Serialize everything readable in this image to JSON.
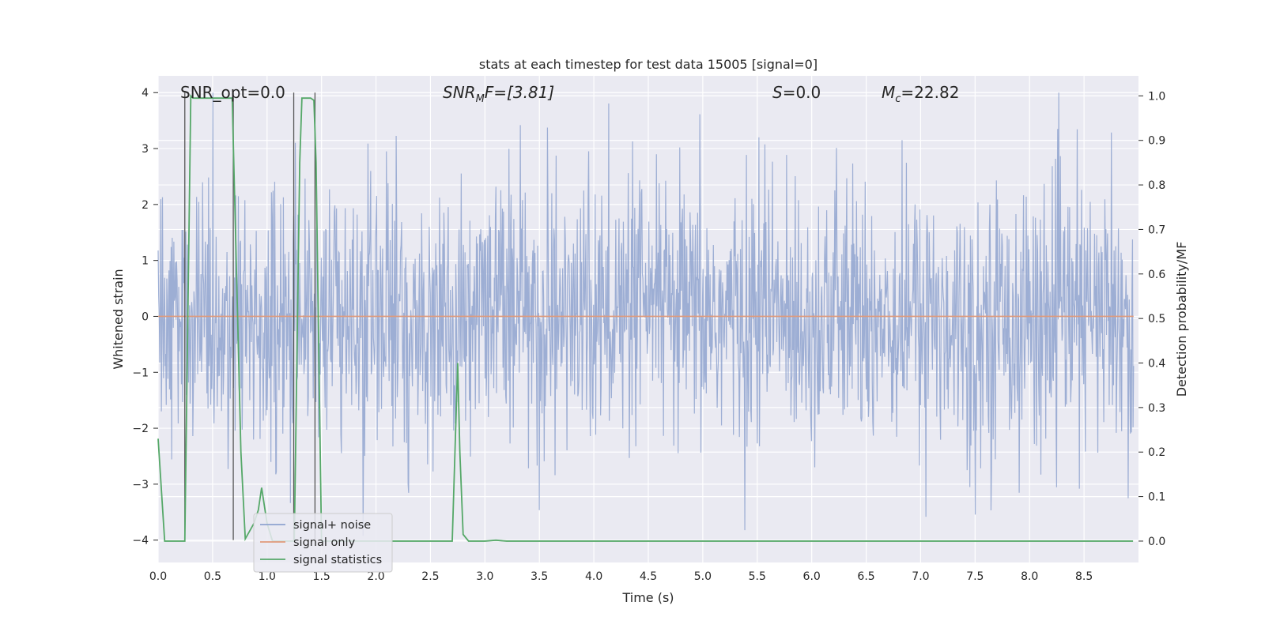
{
  "chart_data": {
    "type": "line",
    "title": "stats at each timestep for test data 15005 [signal=0]",
    "xlabel": "Time (s)",
    "ylabel": "Whitened strain",
    "y2label": "Detection probability/MF",
    "xlim": [
      0,
      9
    ],
    "ylim": [
      -4.4,
      4.3
    ],
    "y2lim": [
      -0.048,
      1.045
    ],
    "xticks": [
      "0.0",
      "0.5",
      "1.0",
      "1.5",
      "2.0",
      "2.5",
      "3.0",
      "3.5",
      "4.0",
      "4.5",
      "5.0",
      "5.5",
      "6.0",
      "6.5",
      "7.0",
      "7.5",
      "8.0",
      "8.5"
    ],
    "yticks": [
      "−4",
      "−3",
      "−2",
      "−1",
      "0",
      "1",
      "2",
      "3",
      "4"
    ],
    "y2ticks": [
      "0.0",
      "0.1",
      "0.2",
      "0.3",
      "0.4",
      "0.5",
      "0.6",
      "0.7",
      "0.8",
      "0.9",
      "1.0"
    ],
    "grid": true,
    "legend_position": "lower-left",
    "annotations": {
      "snr_opt": "SNR_opt=0.0",
      "snr_mf": "SNR",
      "snr_mf_sub": "M",
      "snr_mf_rest": "F=[3.81]",
      "s_label": "S",
      "s_rest": "=0.0",
      "mc_label": "M",
      "mc_sub": "c",
      "mc_rest": "=22.82"
    },
    "vlines_x": [
      0.245,
      0.69,
      1.245,
      1.44
    ],
    "vlines_range": [
      -4.0,
      4.0
    ],
    "series": [
      {
        "name": "signal+ noise",
        "color": "#8fa3cf",
        "kind": "noise",
        "n_samples": 1800,
        "amplitude_typical": 1.6,
        "amplitude_peak": 4.0
      },
      {
        "name": "signal only",
        "color": "#e09a7a",
        "kind": "flat",
        "value": 0.0
      },
      {
        "name": "signal statistics",
        "color": "#55a868",
        "axis": "right",
        "x": [
          0.0,
          0.06,
          0.1,
          0.2,
          0.245,
          0.3,
          0.32,
          0.5,
          0.68,
          0.73,
          0.76,
          0.8,
          0.88,
          0.92,
          0.95,
          1.0,
          1.05,
          1.1,
          1.2,
          1.25,
          1.3,
          1.32,
          1.4,
          1.43,
          1.45,
          1.5,
          1.6,
          2.0,
          2.5,
          2.7,
          2.75,
          2.77,
          2.8,
          2.85,
          2.9,
          3.0,
          3.1,
          3.2,
          4.0,
          5.0,
          6.0,
          7.0,
          8.0,
          8.95
        ],
        "y": [
          0.23,
          0.0,
          0.0,
          0.0,
          0.0,
          1.0,
          0.995,
          0.995,
          0.995,
          0.5,
          0.2,
          0.005,
          0.04,
          0.07,
          0.12,
          0.04,
          0.0,
          0.0,
          0.0,
          0.0,
          0.85,
          0.995,
          0.995,
          0.99,
          0.85,
          0.0,
          0.0,
          0.0,
          0.0,
          0.0,
          0.4,
          0.2,
          0.015,
          0.0,
          0.0,
          0.0,
          0.002,
          0.0,
          0.0,
          0.0,
          0.0,
          0.0,
          0.0,
          0.0
        ]
      }
    ]
  }
}
